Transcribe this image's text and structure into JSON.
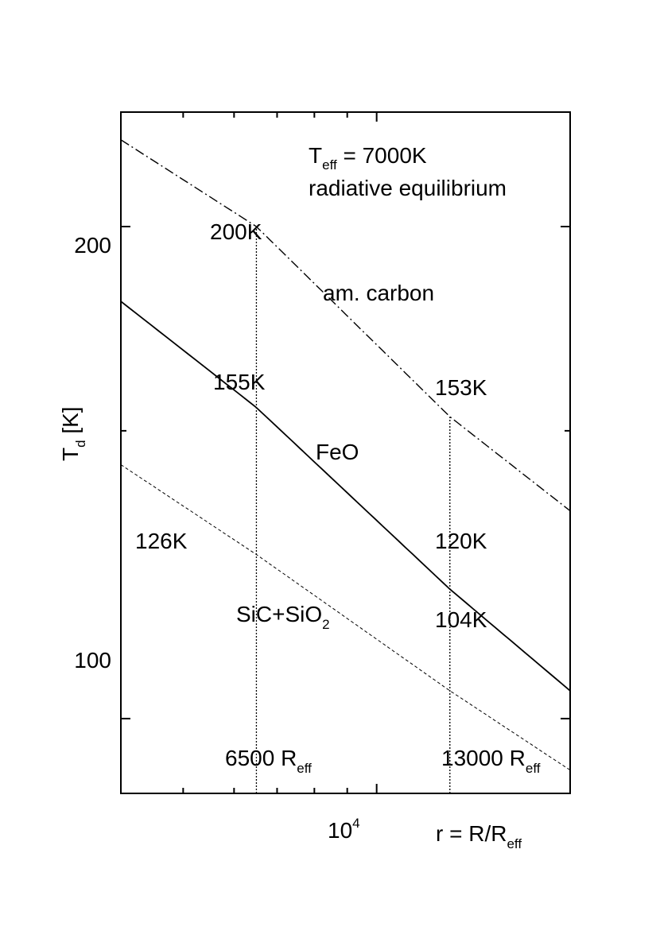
{
  "chart_data": {
    "type": "line",
    "x_scale": "log",
    "y_scale": "log",
    "xlim": [
      4000,
      20000
    ],
    "ylim": [
      90,
      235
    ],
    "grid": false,
    "xlabel": {
      "main": "r = R/R",
      "sub": "eff"
    },
    "ylabel": {
      "main": "T",
      "sub": "d",
      "rest": " [K]"
    },
    "x_ticks": [
      {
        "value": 10000,
        "base": "10",
        "exp": "4"
      }
    ],
    "y_ticks": [
      {
        "value": 100,
        "label": "100"
      },
      {
        "value": 200,
        "label": "200"
      }
    ],
    "title": {
      "line1_main": "T",
      "line1_sub": "eff",
      "line1_rest": " = 7000K",
      "line2": "radiative equilibrium"
    },
    "series": [
      {
        "name": "am. carbon",
        "style": "dashdot",
        "x": [
          4000,
          6500,
          13000,
          20000
        ],
        "y": [
          226,
          200,
          153,
          134
        ]
      },
      {
        "name": "FeO",
        "style": "solid",
        "x": [
          4000,
          6500,
          13000,
          20000
        ],
        "y": [
          180,
          155,
          120,
          104
        ]
      },
      {
        "name_main": "SiC+SiO",
        "name_sub": "2",
        "style": "dashed",
        "x": [
          4000,
          6500,
          13000,
          20000
        ],
        "y": [
          143,
          126,
          104,
          93
        ]
      }
    ],
    "vlines": [
      {
        "x": 6500,
        "label_main": "6500 R",
        "label_sub": "eff"
      },
      {
        "x": 13000,
        "label_main": "13000 R",
        "label_sub": "eff"
      }
    ],
    "point_labels": [
      "200K",
      "155K",
      "126K",
      "153K",
      "120K",
      "104K"
    ]
  }
}
